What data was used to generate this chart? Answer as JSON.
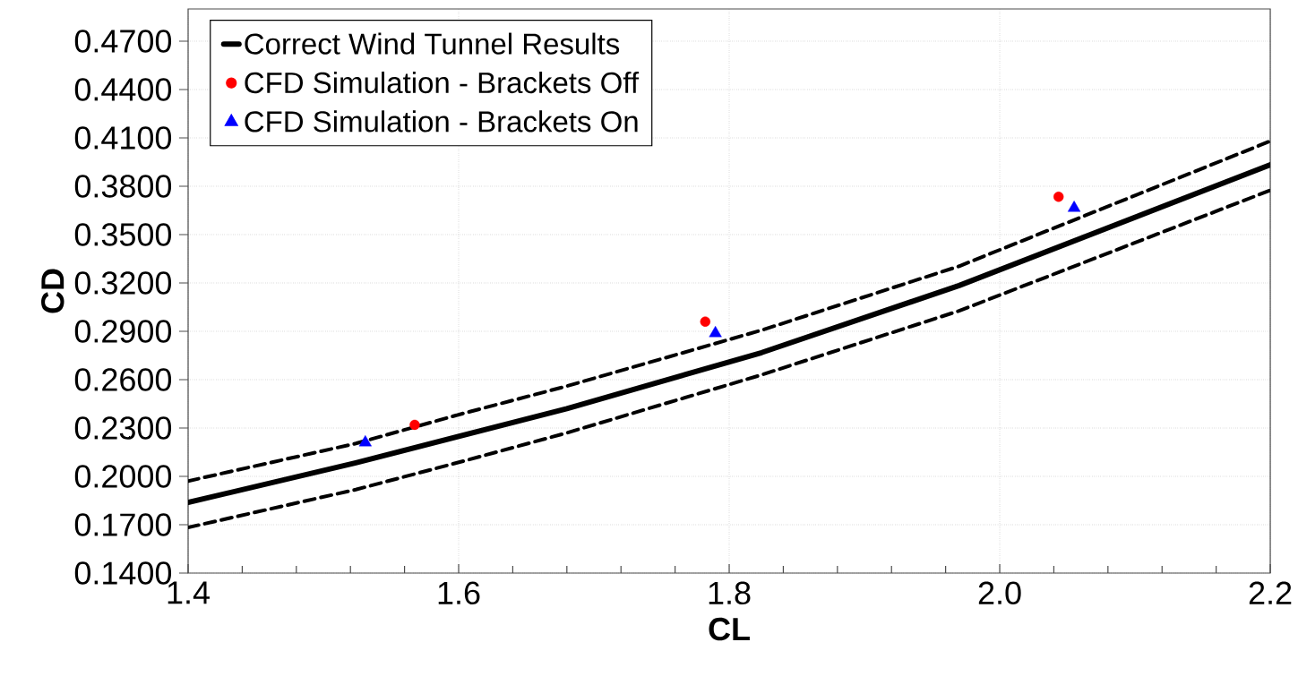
{
  "chart_data": {
    "type": "line",
    "xlabel": "CL",
    "ylabel": "CD",
    "xlim": [
      1.4,
      2.2
    ],
    "ylim": [
      0.14,
      0.49
    ],
    "xticks": [
      1.4,
      {
        "value": 1.44,
        "label": null
      },
      {
        "value": 1.48,
        "label": null
      },
      {
        "value": 1.52,
        "label": null
      },
      {
        "value": 1.56,
        "label": null
      },
      1.6,
      {
        "value": 1.64,
        "label": null
      },
      {
        "value": 1.68,
        "label": null
      },
      {
        "value": 1.72,
        "label": null
      },
      {
        "value": 1.76,
        "label": null
      },
      1.8,
      {
        "value": 1.84,
        "label": null
      },
      {
        "value": 1.88,
        "label": null
      },
      {
        "value": 1.92,
        "label": null
      },
      {
        "value": 1.96,
        "label": null
      },
      {
        "value": 2.0,
        "label": "2.0"
      },
      {
        "value": 2.04,
        "label": null
      },
      {
        "value": 2.08,
        "label": null
      },
      {
        "value": 2.12,
        "label": null
      },
      {
        "value": 2.16,
        "label": null
      },
      2.2
    ],
    "yticks": [
      {
        "value": 0.14,
        "label": "0.1400"
      },
      {
        "value": 0.17,
        "label": "0.1700"
      },
      {
        "value": 0.2,
        "label": "0.2000"
      },
      {
        "value": 0.23,
        "label": "0.2300"
      },
      {
        "value": 0.26,
        "label": "0.2600"
      },
      {
        "value": 0.29,
        "label": "0.2900"
      },
      {
        "value": 0.32,
        "label": "0.3200"
      },
      {
        "value": 0.35,
        "label": "0.3500"
      },
      {
        "value": 0.38,
        "label": "0.3800"
      },
      {
        "value": 0.41,
        "label": "0.4100"
      },
      {
        "value": 0.44,
        "label": "0.4400"
      },
      {
        "value": 0.47,
        "label": "0.4700"
      }
    ],
    "grid": true,
    "legend": "top left",
    "series": [
      {
        "name": "Correct Wind Tunnel Results",
        "color": "#000000",
        "line_style": "solid",
        "marker": "none",
        "x": [
          1.4,
          1.524,
          1.68,
          1.824,
          1.97,
          2.2
        ],
        "values": [
          0.1838,
          0.2084,
          0.242,
          0.2768,
          0.3184,
          0.3933
        ]
      },
      {
        "color": "#000000",
        "line_style": "dashed",
        "marker": "none",
        "x": [
          1.4,
          1.524,
          1.6027,
          1.68,
          1.824,
          1.97,
          2.2
        ],
        "values": [
          0.1971,
          0.2204,
          0.2389,
          0.256,
          0.2907,
          0.3304,
          0.408
        ]
      },
      {
        "color": "#000000",
        "line_style": "dashed",
        "marker": "none",
        "x": [
          1.4,
          1.524,
          1.6027,
          1.68,
          1.824,
          1.97,
          2.2
        ],
        "values": [
          0.1683,
          0.1918,
          0.2093,
          0.227,
          0.263,
          0.3027,
          0.3775
        ]
      },
      {
        "name": "CFD Simulation - Brackets Off",
        "type": "scatter",
        "color": "#ff0000",
        "marker": "circle",
        "x": [
          1.5675,
          1.7823,
          2.0435
        ],
        "values": [
          0.232,
          0.296,
          0.3735
        ]
      },
      {
        "name": "CFD Simulation - Brackets On",
        "type": "scatter",
        "color": "#0000ff",
        "marker": "triangle",
        "x": [
          1.531,
          1.7898,
          2.055
        ],
        "values": [
          0.221,
          0.2888,
          0.3665
        ]
      }
    ]
  }
}
